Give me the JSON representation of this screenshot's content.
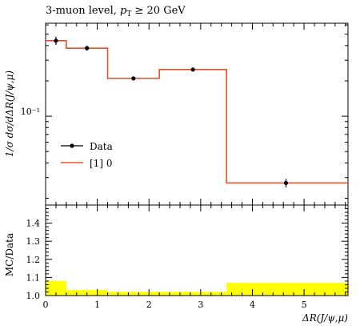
{
  "title": "3-muon level, p_T ≥ 20 GeV",
  "title_parts": {
    "prefix": "3-muon level, ",
    "p": "p",
    "sub": "T",
    "suffix": " ≥ 20 GeV"
  },
  "chart_data": [
    {
      "type": "line",
      "panel": "main",
      "ylabel": "1/σ dσ/dΔR(J/ψ,μ)",
      "yscale": "log",
      "xlim": [
        0,
        5.85
      ],
      "ylim": [
        0.0175,
        0.62
      ],
      "y_tick_label": "10⁻¹",
      "legend": {
        "placement": "middle-left",
        "entries": [
          "Data",
          "[1] 0"
        ]
      },
      "series": [
        {
          "name": "Data",
          "kind": "points",
          "color": "#000000",
          "x": [
            0.2,
            0.8,
            1.7,
            2.85,
            4.65
          ],
          "y": [
            0.44,
            0.38,
            0.21,
            0.25,
            0.027
          ],
          "yerr": [
            0.035,
            0.018,
            0.008,
            0.009,
            0.0022
          ]
        },
        {
          "name": "[1] 0",
          "kind": "step",
          "color": "#e8502c",
          "edges": [
            0,
            0.4,
            1.2,
            2.2,
            3.5,
            5.85
          ],
          "values": [
            0.44,
            0.38,
            0.21,
            0.25,
            0.027
          ]
        }
      ]
    },
    {
      "type": "area",
      "panel": "ratio",
      "ylabel": "MC/Data",
      "xlabel": "ΔR(J/ψ,μ)",
      "xlim": [
        0,
        5.85
      ],
      "ylim": [
        1.0,
        1.5
      ],
      "x_ticks": [
        "0",
        "1",
        "2",
        "3",
        "4",
        "5"
      ],
      "y_ticks": [
        "1.0",
        "1.1",
        "1.2",
        "1.3",
        "1.4"
      ],
      "band_color": "#ffff00",
      "band": {
        "edges": [
          0,
          0.4,
          1.2,
          2.2,
          3.5,
          5.85
        ],
        "upper": [
          1.08,
          1.03,
          1.02,
          1.02,
          1.07
        ]
      },
      "ratio_line": 1.0
    }
  ]
}
